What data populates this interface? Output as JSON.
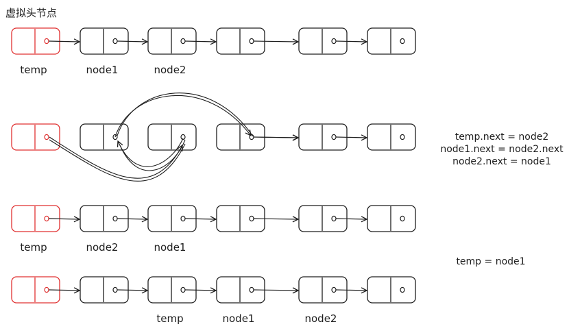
{
  "title": "虚拟头节点",
  "colors": {
    "stroke": "#1e1e1e",
    "head_stroke": "#e03131",
    "background": "#ffffff"
  },
  "rows": [
    {
      "id": "row1",
      "labels": [
        {
          "text": "temp",
          "node": 0
        },
        {
          "text": "node1",
          "node": 1
        },
        {
          "text": "node2",
          "node": 2
        }
      ]
    },
    {
      "id": "row2",
      "labels": []
    },
    {
      "id": "row3",
      "labels": [
        {
          "text": "temp",
          "node": 0
        },
        {
          "text": "node2",
          "node": 1
        },
        {
          "text": "node1",
          "node": 2
        }
      ]
    },
    {
      "id": "row4",
      "labels": [
        {
          "text": "temp",
          "node": 2
        },
        {
          "text": "node1",
          "node": 3
        },
        {
          "text": "node2",
          "node": 4
        }
      ]
    }
  ],
  "notes": {
    "step_swap": [
      "temp.next = node2",
      "node1.next = node2.next",
      "node2.next = node1"
    ],
    "step_advance": [
      "temp = node1"
    ]
  }
}
